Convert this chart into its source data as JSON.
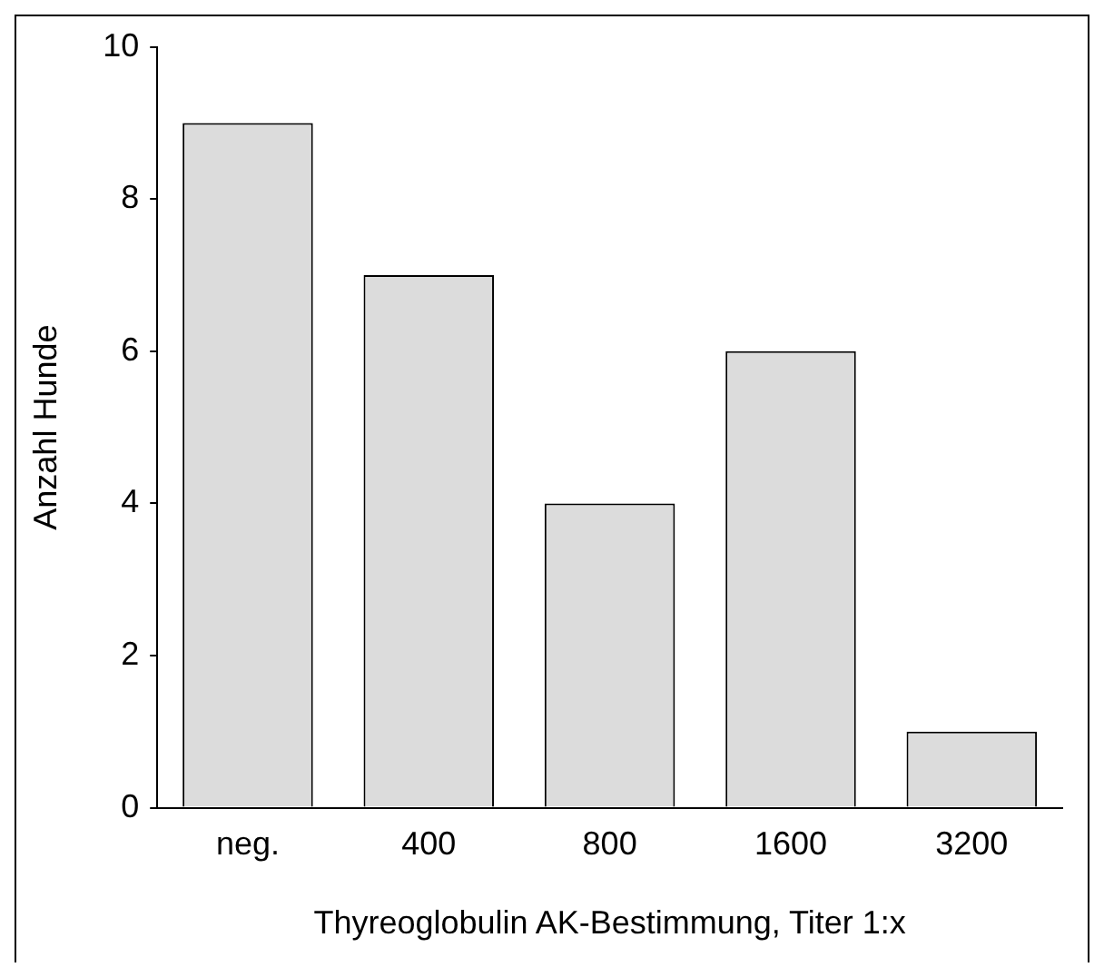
{
  "chart_data": {
    "type": "bar",
    "xlabel": "Thyreoglobulin AK-Bestimmung, Titer 1:x",
    "ylabel": "Anzahl Hunde",
    "categories": [
      "neg.",
      "400",
      "800",
      "1600",
      "3200"
    ],
    "values": [
      9,
      7,
      4,
      6,
      1
    ],
    "color": "#dcdcdc",
    "ylim": [
      0,
      10
    ],
    "yticks": [
      0,
      2,
      4,
      6,
      8,
      10
    ],
    "grid": false,
    "legend": false
  }
}
